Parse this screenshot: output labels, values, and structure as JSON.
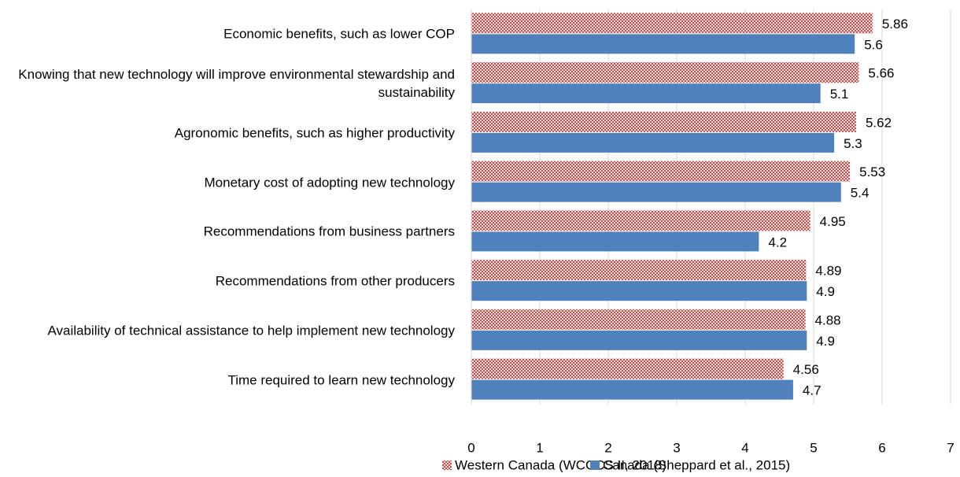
{
  "chart_data": {
    "type": "bar",
    "orientation": "horizontal",
    "categories": [
      "Economic benefits, such as lower COP",
      "Knowing that new technology will improve environmental stewardship and sustainability",
      "Agronomic benefits, such as higher productivity",
      "Monetary cost of adopting new technology",
      "Recommendations from business partners",
      "Recommendations from other producers",
      "Availability of technical assistance to help implement new technology",
      "Time required to learn new technology"
    ],
    "series": [
      {
        "name": "Western Canada (WCCCS II, 2018)",
        "color": "#c0504d",
        "pattern": "checker",
        "values": [
          5.86,
          5.66,
          5.62,
          5.53,
          4.95,
          4.89,
          4.88,
          4.56
        ]
      },
      {
        "name": "Canada (Sheppard et al., 2015)",
        "color": "#4f81bd",
        "values": [
          5.6,
          5.1,
          5.3,
          5.4,
          4.2,
          4.9,
          4.9,
          4.7
        ]
      }
    ],
    "xlim": [
      0,
      7
    ],
    "xticks": [
      0,
      1,
      2,
      3,
      4,
      5,
      6,
      7
    ],
    "grid": true,
    "legend": "bottom"
  }
}
